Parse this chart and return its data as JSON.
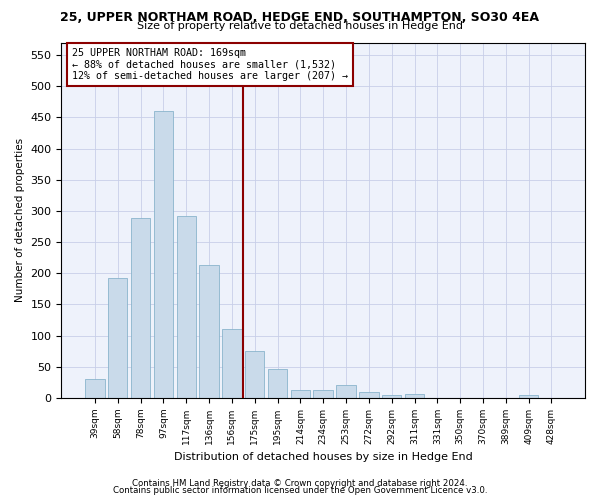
{
  "title1": "25, UPPER NORTHAM ROAD, HEDGE END, SOUTHAMPTON, SO30 4EA",
  "title2": "Size of property relative to detached houses in Hedge End",
  "xlabel": "Distribution of detached houses by size in Hedge End",
  "ylabel": "Number of detached properties",
  "categories": [
    "39sqm",
    "58sqm",
    "78sqm",
    "97sqm",
    "117sqm",
    "136sqm",
    "156sqm",
    "175sqm",
    "195sqm",
    "214sqm",
    "234sqm",
    "253sqm",
    "272sqm",
    "292sqm",
    "311sqm",
    "331sqm",
    "350sqm",
    "370sqm",
    "389sqm",
    "409sqm",
    "428sqm"
  ],
  "values": [
    30,
    192,
    288,
    460,
    292,
    213,
    110,
    75,
    47,
    13,
    13,
    21,
    10,
    5,
    6,
    0,
    0,
    0,
    0,
    5,
    0
  ],
  "bar_color": "#c9daea",
  "bar_edge_color": "#8ab4cc",
  "vline_x": 7.0,
  "annotation_line1": "25 UPPER NORTHAM ROAD: 169sqm",
  "annotation_line2": "← 88% of detached houses are smaller (1,532)",
  "annotation_line3": "12% of semi-detached houses are larger (207) →",
  "ylim": [
    0,
    570
  ],
  "yticks": [
    0,
    50,
    100,
    150,
    200,
    250,
    300,
    350,
    400,
    450,
    500,
    550
  ],
  "footer1": "Contains HM Land Registry data © Crown copyright and database right 2024.",
  "footer2": "Contains public sector information licensed under the Open Government Licence v3.0.",
  "bg_color": "#eef2fb",
  "grid_color": "#c8cfe8"
}
